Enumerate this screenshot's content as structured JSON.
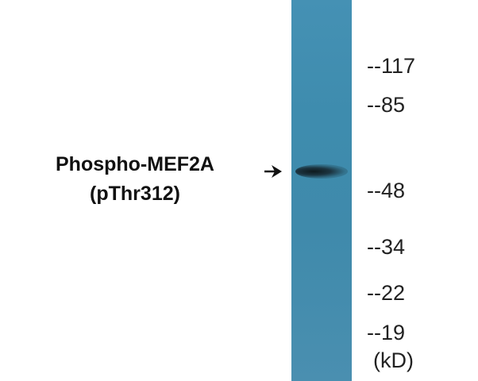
{
  "protein_label": {
    "line1": "Phospho-MEF2A",
    "line2": "(pThr312)"
  },
  "markers": [
    "--117",
    "--85",
    "--48",
    "--34",
    "--22",
    "--19"
  ],
  "unit": "(kD)",
  "colors": {
    "lane": "#3f8cae",
    "band": "#12222a"
  },
  "icons": {
    "arrow": "arrow-right-icon"
  }
}
